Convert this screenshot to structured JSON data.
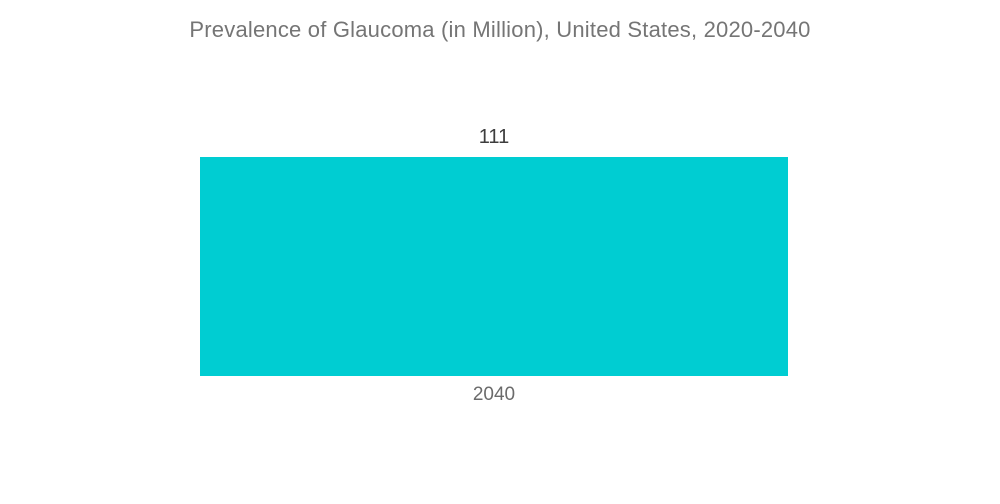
{
  "chart_data": {
    "type": "bar",
    "title": "Prevalence of Glaucoma (in Million), United States, 2020-2040",
    "categories": [
      "2040"
    ],
    "values": [
      111
    ],
    "value_labels": [
      "111"
    ],
    "xlabel": "",
    "ylabel": "",
    "ylim": [
      0,
      111
    ],
    "grid": false,
    "legend": "none",
    "bar_color": "#00CDD2",
    "title_color": "#757575",
    "value_label_color": "#3d3d3d",
    "category_label_color": "#6b6b6b",
    "background_color": "#ffffff"
  }
}
